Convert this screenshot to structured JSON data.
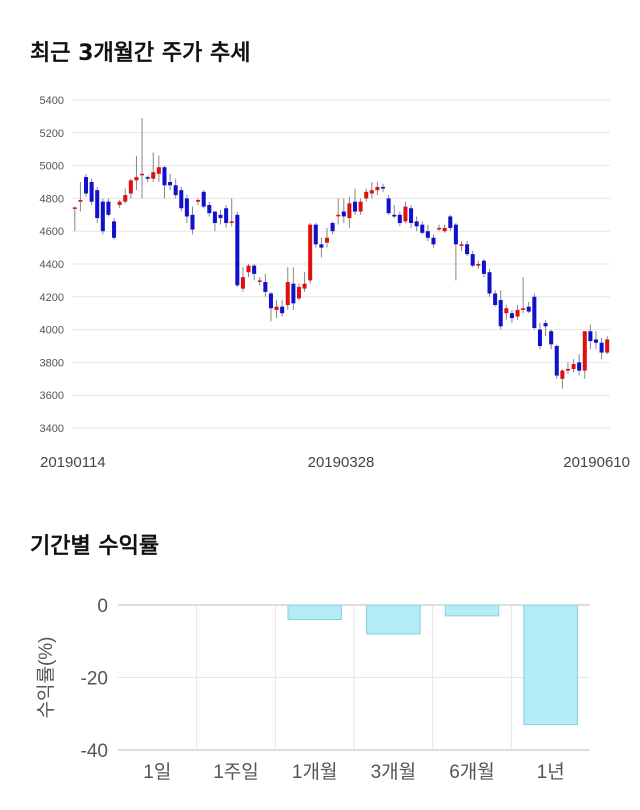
{
  "sections": {
    "price_title": "최근 3개월간 주가 추세",
    "return_title": "기간별 수익률"
  },
  "colors": {
    "up": "#dd1111",
    "down": "#1111cc",
    "wick": "#888888",
    "bar_fill": "#b3ecf5",
    "bar_stroke": "#88d0e0",
    "grid": "#e6e6e6"
  },
  "chart_data": [
    {
      "type": "candlestick",
      "title": "최근 3개월간 주가 추세",
      "ylim": [
        3400,
        5400
      ],
      "yticks": [
        3400,
        3600,
        3800,
        4000,
        4200,
        4400,
        4600,
        4800,
        5000,
        5200,
        5400
      ],
      "xtick_labels": [
        "20190114",
        "20190328",
        "20190610"
      ],
      "grid": true,
      "candles": [
        [
          4740,
          4745,
          4600,
          4750
        ],
        [
          4780,
          4790,
          4720,
          4900
        ],
        [
          4930,
          4830,
          4810,
          4950
        ],
        [
          4900,
          4780,
          4760,
          4920
        ],
        [
          4850,
          4680,
          4650,
          4870
        ],
        [
          4780,
          4600,
          4580,
          4800
        ],
        [
          4780,
          4700,
          4690,
          4800
        ],
        [
          4660,
          4560,
          4550,
          4680
        ],
        [
          4760,
          4780,
          4740,
          4790
        ],
        [
          4780,
          4820,
          4770,
          4860
        ],
        [
          4830,
          4910,
          4800,
          4920
        ],
        [
          4910,
          4930,
          4850,
          5060
        ],
        [
          4950,
          4950,
          4800,
          5290
        ],
        [
          4930,
          4920,
          4900,
          4940
        ],
        [
          4920,
          4960,
          4900,
          5080
        ],
        [
          4950,
          4990,
          4900,
          5060
        ],
        [
          4990,
          4880,
          4800,
          5000
        ],
        [
          4900,
          4880,
          4850,
          4950
        ],
        [
          4880,
          4820,
          4800,
          4920
        ],
        [
          4850,
          4740,
          4720,
          4870
        ],
        [
          4800,
          4690,
          4650,
          4820
        ],
        [
          4700,
          4610,
          4580,
          4750
        ],
        [
          4780,
          4790,
          4760,
          4800
        ],
        [
          4840,
          4750,
          4740,
          4850
        ],
        [
          4760,
          4710,
          4690,
          4780
        ],
        [
          4720,
          4650,
          4600,
          4720
        ],
        [
          4700,
          4680,
          4640,
          4730
        ],
        [
          4740,
          4650,
          4620,
          4760
        ],
        [
          4660,
          4660,
          4630,
          4800
        ],
        [
          4700,
          4270,
          4260,
          4720
        ],
        [
          4250,
          4320,
          4230,
          4380
        ],
        [
          4350,
          4390,
          4320,
          4400
        ],
        [
          4390,
          4340,
          4300,
          4400
        ],
        [
          4300,
          4300,
          4270,
          4320
        ],
        [
          4290,
          4230,
          4200,
          4340
        ],
        [
          4220,
          4130,
          4050,
          4230
        ],
        [
          4120,
          4140,
          4070,
          4180
        ],
        [
          4140,
          4100,
          4080,
          4180
        ],
        [
          4150,
          4290,
          4120,
          4380
        ],
        [
          4280,
          4160,
          4120,
          4380
        ],
        [
          4190,
          4260,
          4180,
          4280
        ],
        [
          4250,
          4280,
          4230,
          4350
        ],
        [
          4300,
          4640,
          4280,
          4650
        ],
        [
          4640,
          4520,
          4500,
          4650
        ],
        [
          4520,
          4500,
          4440,
          4560
        ],
        [
          4530,
          4560,
          4500,
          4620
        ],
        [
          4650,
          4600,
          4580,
          4660
        ],
        [
          4700,
          4700,
          4640,
          4800
        ],
        [
          4720,
          4690,
          4650,
          4800
        ],
        [
          4680,
          4770,
          4620,
          4810
        ],
        [
          4780,
          4720,
          4700,
          4860
        ],
        [
          4720,
          4780,
          4700,
          4800
        ],
        [
          4800,
          4840,
          4780,
          4860
        ],
        [
          4830,
          4850,
          4800,
          4900
        ],
        [
          4850,
          4870,
          4820,
          4900
        ],
        [
          4870,
          4860,
          4840,
          4890
        ],
        [
          4800,
          4710,
          4700,
          4820
        ],
        [
          4700,
          4690,
          4680,
          4760
        ],
        [
          4700,
          4650,
          4630,
          4720
        ],
        [
          4660,
          4750,
          4650,
          4780
        ],
        [
          4740,
          4650,
          4620,
          4760
        ],
        [
          4660,
          4630,
          4600,
          4690
        ],
        [
          4640,
          4590,
          4580,
          4660
        ],
        [
          4600,
          4560,
          4540,
          4640
        ],
        [
          4560,
          4520,
          4500,
          4580
        ],
        [
          4620,
          4620,
          4600,
          4640
        ],
        [
          4600,
          4620,
          4590,
          4640
        ],
        [
          4690,
          4620,
          4600,
          4700
        ],
        [
          4640,
          4520,
          4300,
          4650
        ],
        [
          4520,
          4520,
          4480,
          4540
        ],
        [
          4520,
          4460,
          4450,
          4540
        ],
        [
          4460,
          4390,
          4380,
          4480
        ],
        [
          4390,
          4400,
          4370,
          4420
        ],
        [
          4420,
          4340,
          4320,
          4430
        ],
        [
          4350,
          4220,
          4200,
          4370
        ],
        [
          4220,
          4150,
          4140,
          4240
        ],
        [
          4180,
          4020,
          4000,
          4240
        ],
        [
          4100,
          4130,
          4060,
          4150
        ],
        [
          4100,
          4070,
          4040,
          4120
        ],
        [
          4080,
          4120,
          4060,
          4150
        ],
        [
          4120,
          4130,
          4100,
          4320
        ],
        [
          4140,
          4110,
          4100,
          4170
        ],
        [
          4200,
          4010,
          4000,
          4220
        ],
        [
          4000,
          3900,
          3880,
          4040
        ],
        [
          4040,
          4020,
          3960,
          4060
        ],
        [
          3990,
          3910,
          3880,
          4000
        ],
        [
          3900,
          3720,
          3700,
          3910
        ],
        [
          3700,
          3750,
          3640,
          3760
        ],
        [
          3750,
          3760,
          3730,
          3800
        ],
        [
          3760,
          3790,
          3740,
          3820
        ],
        [
          3800,
          3750,
          3720,
          3850
        ],
        [
          3750,
          3990,
          3700,
          3990
        ],
        [
          3990,
          3930,
          3880,
          4030
        ],
        [
          3940,
          3920,
          3880,
          3990
        ],
        [
          3920,
          3860,
          3820,
          3950
        ],
        [
          3860,
          3940,
          3850,
          3960
        ]
      ]
    },
    {
      "type": "bar",
      "title": "기간별 수익률",
      "ylabel": "수익률(%)",
      "ylim": [
        -40,
        0
      ],
      "yticks": [
        0,
        -20,
        -40
      ],
      "categories": [
        "1일",
        "1주일",
        "1개월",
        "3개월",
        "6개월",
        "1년"
      ],
      "values": [
        0,
        0,
        -4,
        -8,
        -3,
        -33
      ],
      "grid": true
    }
  ]
}
